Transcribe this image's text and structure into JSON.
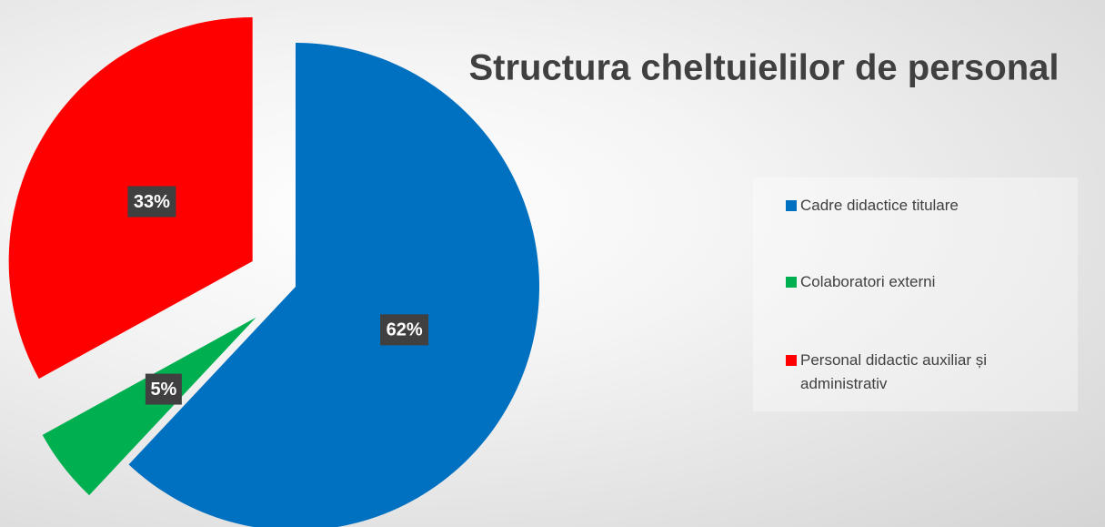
{
  "chart_data": {
    "type": "pie",
    "title": "Structura cheltuielilor de personal",
    "categories": [
      "Cadre didactice titulare",
      "Colaboratori externi",
      "Personal didactic auxiliar și administrativ"
    ],
    "values": [
      62,
      5,
      33
    ],
    "value_labels": [
      "62%",
      "5%",
      "33%"
    ],
    "colors": [
      "#0070c0",
      "#00b050",
      "#ff0000"
    ],
    "legend": "right"
  }
}
